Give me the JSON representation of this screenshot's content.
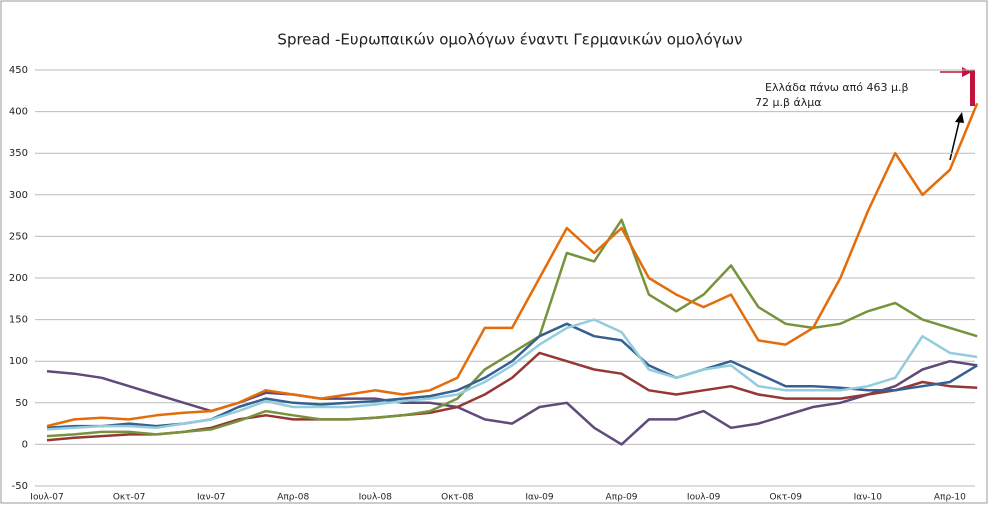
{
  "chart_data": {
    "type": "line",
    "title": "Spread -Ευρωπαικών ομολόγων έναντι Γερμανικών ομολόγων",
    "annotations": [
      "Ελλάδα πάνω από 463 μ.β",
      "72 μ.β άλμα"
    ],
    "categories": [
      "Ιουλ-07",
      null,
      null,
      "Οκτ-07",
      null,
      null,
      "Ιαν-07",
      null,
      null,
      "Απρ-08",
      null,
      null,
      "Ιουλ-08",
      null,
      null,
      "Οκτ-08",
      null,
      null,
      "Ιαν-09",
      null,
      null,
      "Απρ-09",
      null,
      null,
      "Ιουλ-09",
      null,
      null,
      "Οκτ-09",
      null,
      null,
      "Ιαν-10",
      null,
      null,
      "Απρ-10",
      null
    ],
    "series": [
      {
        "color": "#604a7b",
        "values": [
          88,
          85,
          80,
          70,
          60,
          50,
          40,
          50,
          62,
          60,
          55,
          55,
          55,
          50,
          50,
          45,
          30,
          25,
          45,
          50,
          20,
          0,
          30,
          30,
          40,
          20,
          25,
          35,
          45,
          50,
          60,
          70,
          90,
          100,
          95
        ]
      },
      {
        "color": "#953735",
        "values": [
          5,
          8,
          10,
          12,
          12,
          15,
          20,
          30,
          35,
          30,
          30,
          30,
          32,
          35,
          38,
          45,
          60,
          80,
          110,
          100,
          90,
          85,
          65,
          60,
          65,
          70,
          60,
          55,
          55,
          55,
          60,
          65,
          75,
          70,
          68
        ]
      },
      {
        "color": "#77933c",
        "values": [
          10,
          12,
          15,
          15,
          12,
          15,
          18,
          28,
          40,
          35,
          30,
          30,
          32,
          35,
          40,
          55,
          90,
          110,
          130,
          230,
          220,
          270,
          180,
          160,
          180,
          215,
          165,
          145,
          140,
          145,
          160,
          170,
          150,
          140,
          130
        ]
      },
      {
        "color": "#376092",
        "values": [
          20,
          22,
          22,
          25,
          22,
          25,
          30,
          45,
          55,
          50,
          48,
          50,
          52,
          55,
          58,
          65,
          80,
          100,
          130,
          145,
          130,
          125,
          95,
          80,
          90,
          100,
          85,
          70,
          70,
          68,
          65,
          65,
          70,
          75,
          95
        ]
      },
      {
        "color": "#93cddd",
        "values": [
          18,
          20,
          22,
          22,
          20,
          25,
          30,
          40,
          52,
          45,
          45,
          45,
          48,
          52,
          55,
          60,
          75,
          95,
          120,
          140,
          150,
          135,
          90,
          80,
          90,
          95,
          70,
          65,
          65,
          65,
          70,
          80,
          130,
          110,
          105
        ]
      },
      {
        "color": "#e46c0a",
        "values": [
          22,
          30,
          32,
          30,
          35,
          38,
          40,
          50,
          65,
          60,
          55,
          60,
          65,
          60,
          65,
          80,
          140,
          140,
          200,
          260,
          230,
          260,
          200,
          180,
          165,
          180,
          125,
          120,
          140,
          200,
          280,
          350,
          300,
          330,
          410
        ]
      }
    ],
    "ylim": [
      -50,
      450
    ],
    "yticks": [
      -50,
      0,
      50,
      100,
      150,
      200,
      250,
      300,
      350,
      400,
      450
    ],
    "grid": true
  }
}
